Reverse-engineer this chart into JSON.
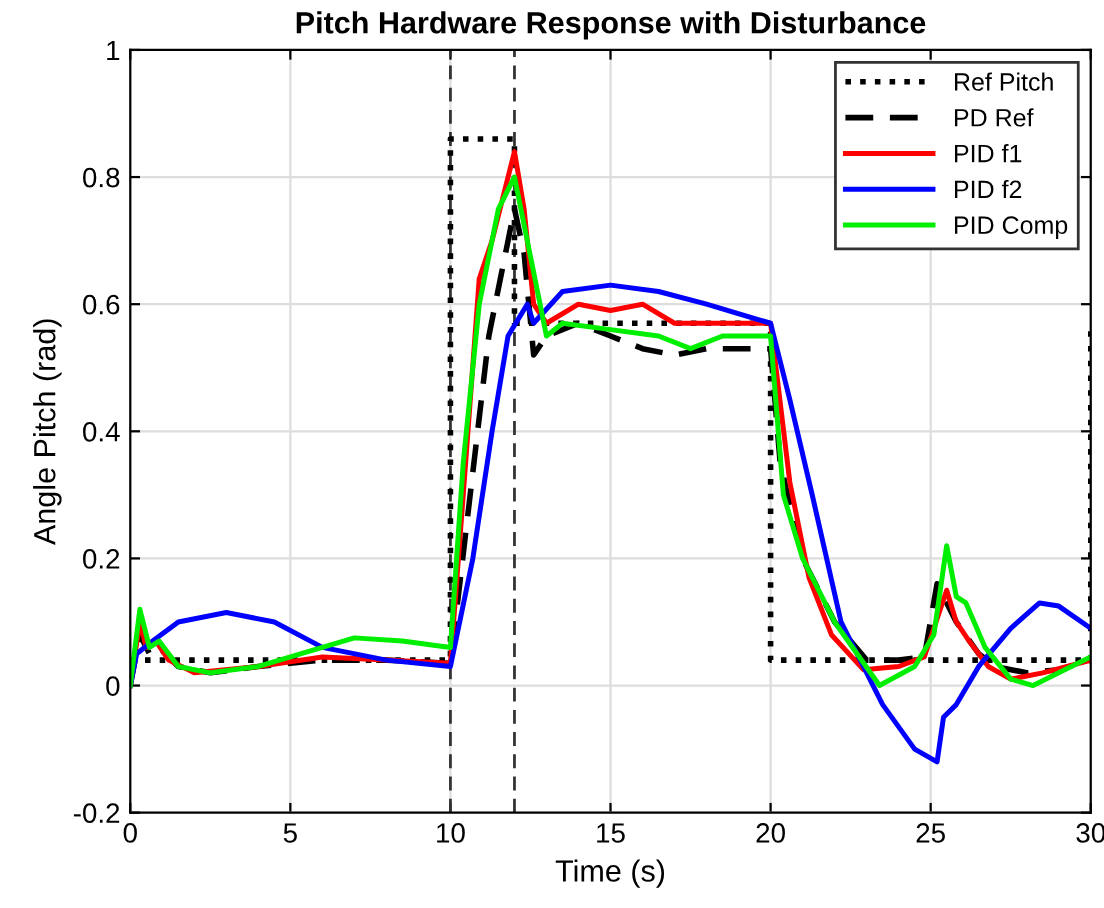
{
  "chart_data": {
    "type": "line",
    "title": "Pitch Hardware Response with Disturbance",
    "xlabel": "Time (s)",
    "ylabel": "Angle Pitch (rad)",
    "xlim": [
      0,
      30
    ],
    "ylim": [
      -0.2,
      1
    ],
    "xticks": [
      0,
      5,
      10,
      15,
      20,
      25,
      30
    ],
    "yticks": [
      -0.2,
      0,
      0.2,
      0.4,
      0.6,
      0.8,
      1
    ],
    "grid": true,
    "legend": "top right",
    "ref_lines": [
      {
        "axis": "x",
        "value": 10,
        "color": "#333333",
        "line_style": "dashed"
      },
      {
        "axis": "x",
        "value": 12,
        "color": "#333333",
        "line_style": "dashed"
      }
    ],
    "series": [
      {
        "name": "Ref Pitch",
        "color": "#000000",
        "line_style": "dotted",
        "x": [
          0,
          10,
          10,
          12,
          12,
          20,
          20,
          30,
          30
        ],
        "values": [
          0.04,
          0.04,
          0.86,
          0.86,
          0.57,
          0.57,
          0.04,
          0.04,
          0.57
        ]
      },
      {
        "name": "PD Ref",
        "color": "#000000",
        "line_style": "dashed",
        "x": [
          0,
          0.3,
          0.6,
          0.9,
          1.5,
          2.5,
          4,
          6,
          8,
          10,
          10.5,
          11.2,
          11.6,
          12,
          12.3,
          12.6,
          13,
          14,
          15,
          16,
          17,
          18,
          20,
          20.3,
          21,
          22,
          23,
          24,
          24.8,
          25.2,
          25.8,
          26.5,
          27,
          28,
          29,
          30
        ],
        "values": [
          0,
          0.08,
          0.05,
          0.06,
          0.03,
          0.02,
          0.03,
          0.04,
          0.04,
          0.035,
          0.25,
          0.55,
          0.65,
          0.75,
          0.68,
          0.52,
          0.55,
          0.57,
          0.55,
          0.53,
          0.52,
          0.53,
          0.53,
          0.35,
          0.2,
          0.1,
          0.04,
          0.04,
          0.045,
          0.16,
          0.1,
          0.05,
          0.03,
          0.02,
          0.025,
          0.04
        ]
      },
      {
        "name": "PID f1",
        "color": "#ff0000",
        "line_style": "solid",
        "x": [
          0,
          0.3,
          0.5,
          0.8,
          1.2,
          2,
          4,
          6,
          8,
          10,
          10.4,
          10.9,
          11.3,
          11.8,
          12,
          12.3,
          12.6,
          13,
          14,
          15,
          16,
          17,
          20,
          20.6,
          21.2,
          21.9,
          22.9,
          24,
          24.8,
          25.5,
          25.8,
          26.2,
          26.8,
          27.5,
          28.5,
          30
        ],
        "values": [
          0,
          0.1,
          0.06,
          0.07,
          0.04,
          0.02,
          0.03,
          0.045,
          0.04,
          0.035,
          0.3,
          0.64,
          0.7,
          0.8,
          0.84,
          0.75,
          0.6,
          0.57,
          0.6,
          0.59,
          0.6,
          0.57,
          0.57,
          0.32,
          0.17,
          0.08,
          0.025,
          0.03,
          0.045,
          0.15,
          0.1,
          0.07,
          0.03,
          0.01,
          0.02,
          0.04
        ]
      },
      {
        "name": "PID f2",
        "color": "#0000ff",
        "line_style": "solid",
        "x": [
          0,
          0.2,
          0.7,
          1.5,
          3,
          4.5,
          6,
          8,
          10,
          10.7,
          11.3,
          11.8,
          12.4,
          12.6,
          13.5,
          15,
          16.5,
          18,
          20,
          20.6,
          21.3,
          22.2,
          23.5,
          24.5,
          25.2,
          25.4,
          25.8,
          26.5,
          27.5,
          28.4,
          29,
          30
        ],
        "values": [
          0,
          0.05,
          0.07,
          0.1,
          0.115,
          0.1,
          0.06,
          0.04,
          0.03,
          0.2,
          0.4,
          0.55,
          0.6,
          0.57,
          0.62,
          0.63,
          0.62,
          0.6,
          0.57,
          0.45,
          0.3,
          0.1,
          -0.03,
          -0.1,
          -0.12,
          -0.05,
          -0.03,
          0.03,
          0.09,
          0.13,
          0.125,
          0.09
        ]
      },
      {
        "name": "PID Comp",
        "color": "#00ee00",
        "line_style": "solid",
        "x": [
          0,
          0.3,
          0.6,
          0.9,
          1.5,
          2.5,
          4,
          6,
          7,
          8.5,
          10,
          10.4,
          10.9,
          11.5,
          12,
          12.4,
          12.8,
          13,
          13.5,
          15,
          16.5,
          17.5,
          18.5,
          20,
          20.4,
          21,
          22,
          23.4,
          24.5,
          25.1,
          25.5,
          25.8,
          26.1,
          26.7,
          27.5,
          28.2,
          29,
          30
        ],
        "values": [
          0,
          0.12,
          0.06,
          0.07,
          0.03,
          0.02,
          0.03,
          0.06,
          0.075,
          0.07,
          0.06,
          0.35,
          0.6,
          0.75,
          0.8,
          0.7,
          0.6,
          0.55,
          0.57,
          0.56,
          0.55,
          0.53,
          0.55,
          0.55,
          0.3,
          0.2,
          0.1,
          0.0,
          0.03,
          0.08,
          0.22,
          0.14,
          0.13,
          0.06,
          0.01,
          0.0,
          0.02,
          0.045
        ]
      }
    ]
  }
}
